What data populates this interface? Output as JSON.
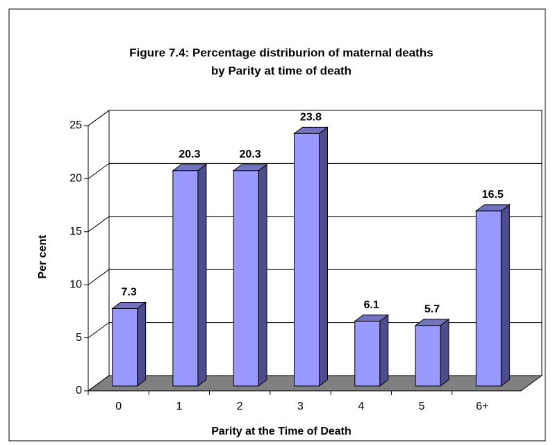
{
  "chart_data": {
    "type": "bar3d",
    "title": "Figure 7.4: Percentage distriburion of maternal deaths",
    "subtitle": "by Parity at time of death",
    "x_label": "Parity at the Time of Death",
    "y_label": "Per cent",
    "categories": [
      "0",
      "1",
      "2",
      "3",
      "4",
      "5",
      "6+"
    ],
    "values": [
      7.3,
      20.3,
      20.3,
      23.8,
      6.1,
      5.7,
      16.5
    ],
    "color": "#9999ff",
    "ylim": [
      0,
      25
    ],
    "yticks": [
      0,
      5,
      10,
      15,
      20,
      25
    ],
    "grid": true
  }
}
